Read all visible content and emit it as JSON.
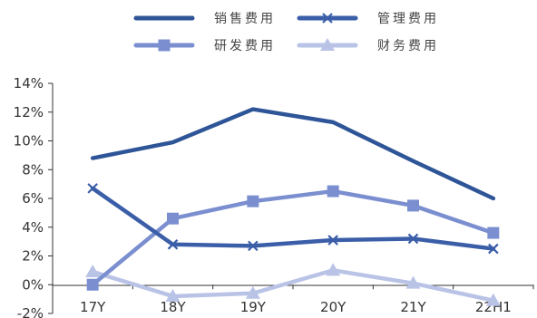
{
  "chart_data": {
    "type": "line",
    "categories": [
      "17Y",
      "18Y",
      "19Y",
      "20Y",
      "21Y",
      "22H1"
    ],
    "ylim": [
      -2,
      14
    ],
    "yticks": [
      "14%",
      "12%",
      "10%",
      "8%",
      "6%",
      "4%",
      "2%",
      "0%",
      "-2%"
    ],
    "ytick_values": [
      14,
      12,
      10,
      8,
      6,
      4,
      2,
      0,
      -2
    ],
    "grid": false,
    "legend_position": "top",
    "series": [
      {
        "name": "销售费用",
        "values": [
          8.8,
          9.9,
          12.2,
          11.3,
          8.6,
          6.0
        ],
        "color": "#2e5597",
        "marker": "none"
      },
      {
        "name": "管理费用",
        "values": [
          6.7,
          2.8,
          2.7,
          3.1,
          3.2,
          2.5
        ],
        "color": "#3b5ea8",
        "marker": "x"
      },
      {
        "name": "研发费用",
        "values": [
          0.0,
          4.6,
          5.8,
          6.5,
          5.5,
          3.6
        ],
        "color": "#7b8fd0",
        "marker": "square"
      },
      {
        "name": "财务费用",
        "values": [
          0.9,
          -0.8,
          -0.6,
          1.0,
          0.1,
          -1.1
        ],
        "color": "#b9c3e6",
        "marker": "triangle"
      }
    ]
  }
}
